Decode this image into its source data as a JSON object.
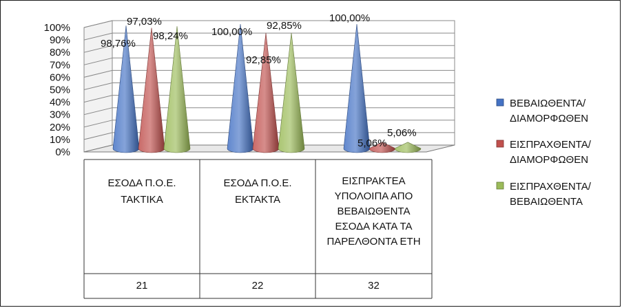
{
  "chart_data": {
    "type": "bar",
    "shape": "cone-3d",
    "categories": [
      {
        "name": [
          "ΕΣΟΔΑ Π.Ο.Ε.",
          "ΤΑΚΤΙΚΑ"
        ],
        "code": "21"
      },
      {
        "name": [
          "ΕΣΟΔΑ Π.Ο.Ε.",
          "ΕΚΤΑΚΤΑ"
        ],
        "code": "22"
      },
      {
        "name": [
          "ΕΙΣΠΡΑΚΤΕΑ",
          "ΥΠΟΛΟΙΠΑ ΑΠΟ",
          "ΒΕΒΑΙΩΘΕΝΤΑ",
          "ΕΣΟΔΑ ΚΑΤΑ ΤΑ",
          "ΠΑΡΕΛΘΟΝΤΑ ΕΤΗ"
        ],
        "code": "32"
      }
    ],
    "series": [
      {
        "name": [
          "ΒΕΒΑΙΩΘΕΝΤΑ/",
          "ΔΙΑΜΟΡΦΩΘΕΝ"
        ],
        "color": "#4472C4",
        "values": [
          98.76,
          100.0,
          100.0
        ],
        "labels": [
          "98,76%",
          "100,00%",
          "100,00%"
        ]
      },
      {
        "name": [
          "ΕΙΣΠΡΑΧΘΕΝΤΑ/",
          "ΔΙΑΜΟΡΦΩΘΕΝ"
        ],
        "color": "#C0504D",
        "values": [
          97.03,
          92.85,
          5.06
        ],
        "labels": [
          "97,03%",
          "92,85%",
          "5,06%"
        ]
      },
      {
        "name": [
          "ΕΙΣΠΡΑΧΘΕΝΤΑ/",
          "ΒΕΒΑΙΩΘΕΝΤΑ"
        ],
        "color": "#9BBB59",
        "values": [
          98.24,
          92.85,
          5.06
        ],
        "labels": [
          "98,24%",
          "92,85%",
          "5,06%"
        ]
      }
    ],
    "ylim": [
      0,
      100
    ],
    "yticks": [
      "0%",
      "10%",
      "20%",
      "30%",
      "40%",
      "50%",
      "60%",
      "70%",
      "80%",
      "90%",
      "100%"
    ],
    "grid": true,
    "legend_position": "right"
  }
}
